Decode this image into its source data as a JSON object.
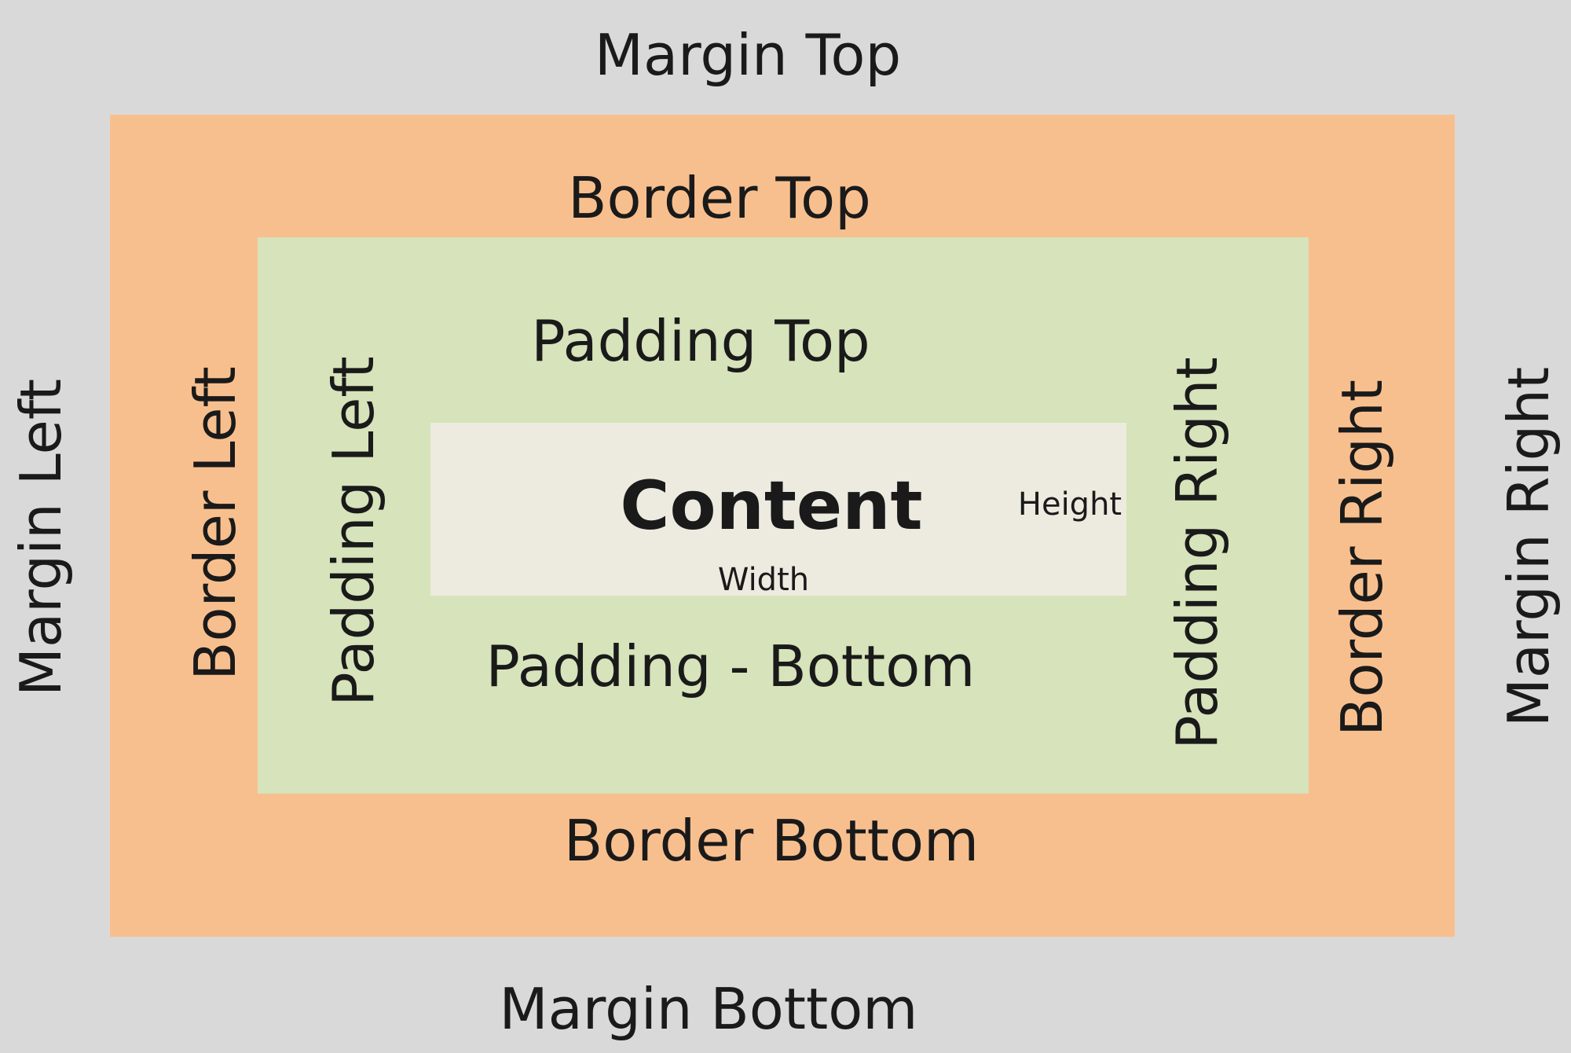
{
  "colors": {
    "margin": "#d9d9d9",
    "border": "#f8bf8e",
    "padding": "#d6e3bb",
    "content": "#edebe0"
  },
  "labels": {
    "margin_top": "Margin Top",
    "margin_bottom": "Margin Bottom",
    "margin_left": "Margin Left",
    "margin_right": "Margin Right",
    "border_top": "Border Top",
    "border_bottom": "Border Bottom",
    "border_left": "Border Left",
    "border_right": "Border Right",
    "padding_top": "Padding Top",
    "padding_bottom": "Padding - Bottom",
    "padding_left": "Padding Left",
    "padding_right": "Padding Right",
    "content": "Content",
    "width": "Width",
    "height": "Height"
  }
}
